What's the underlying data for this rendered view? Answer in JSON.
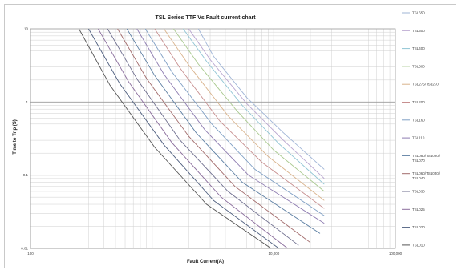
{
  "chart_data": {
    "type": "line",
    "title": "TSL  Series TTF  Vs Fault current chart",
    "xlabel": "Fault Current(A)",
    "ylabel": "Time to Trip (S)",
    "xscale": "log",
    "yscale": "log",
    "xlim": [
      100,
      100000
    ],
    "ylim": [
      0.01,
      10
    ],
    "x_ticks": [
      "100",
      "10,000",
      "100,000"
    ],
    "y_ticks": [
      "10",
      "1",
      "0.1",
      "0.01"
    ],
    "grid": true,
    "legend_position": "right",
    "series": [
      {
        "name": "TSL650",
        "color": "#9fb4d6",
        "x": [
          2400,
          3200,
          6000,
          12000,
          26000
        ],
        "y": [
          10,
          4.2,
          1.15,
          0.38,
          0.12
        ]
      },
      {
        "name": "TSL500",
        "color": "#b7a4cf",
        "x": [
          2000,
          3000,
          6000,
          12000,
          26000
        ],
        "y": [
          10,
          3.8,
          0.95,
          0.3,
          0.09
        ]
      },
      {
        "name": "TSL400",
        "color": "#8fc4d4",
        "x": [
          1800,
          2800,
          5500,
          11000,
          26000
        ],
        "y": [
          10,
          3.6,
          0.9,
          0.27,
          0.075
        ]
      },
      {
        "name": "TSL300",
        "color": "#a9c98f",
        "x": [
          1500,
          2400,
          5000,
          10000,
          26000
        ],
        "y": [
          10,
          3.3,
          0.75,
          0.22,
          0.06
        ]
      },
      {
        "name": "TSL275/TSL270",
        "color": "#d9b38c",
        "x": [
          1250,
          2000,
          4200,
          9000,
          26000
        ],
        "y": [
          10,
          3.2,
          0.65,
          0.18,
          0.045
        ]
      },
      {
        "name": "TSL200",
        "color": "#c78f8f",
        "x": [
          1050,
          1700,
          3600,
          8000,
          26000
        ],
        "y": [
          10,
          2.9,
          0.55,
          0.15,
          0.035
        ]
      },
      {
        "name": "TSL160",
        "color": "#7f9fc4",
        "x": [
          880,
          1450,
          3100,
          7000,
          26000
        ],
        "y": [
          10,
          2.6,
          0.5,
          0.12,
          0.028
        ]
      },
      {
        "name": "TSL110",
        "color": "#8d7bb0",
        "x": [
          750,
          1250,
          2700,
          6200,
          26000
        ],
        "y": [
          10,
          2.4,
          0.42,
          0.1,
          0.022
        ]
      },
      {
        "name": "TSL080/TSL090/TSL070",
        "color": "#5d7fa3",
        "x": [
          620,
          1050,
          2300,
          5500,
          24000
        ],
        "y": [
          10,
          2.3,
          0.38,
          0.08,
          0.016
        ]
      },
      {
        "name": "TSL060/TSL050/TSL040",
        "color": "#a26b6b",
        "x": [
          520,
          900,
          2000,
          4800,
          20000
        ],
        "y": [
          10,
          2.1,
          0.34,
          0.07,
          0.012
        ]
      },
      {
        "name": "TSL030",
        "color": "#6e6e8e",
        "x": [
          430,
          760,
          1700,
          4200,
          16000
        ],
        "y": [
          10,
          2.0,
          0.3,
          0.06,
          0.011
        ]
      },
      {
        "name": "TSL025",
        "color": "#8a6d9c",
        "x": [
          360,
          640,
          1450,
          3700,
          13000
        ],
        "y": [
          10,
          1.9,
          0.28,
          0.05,
          0.01
        ]
      },
      {
        "name": "TSL020",
        "color": "#4f5f7f",
        "x": [
          300,
          540,
          1250,
          3200,
          11000
        ],
        "y": [
          10,
          1.8,
          0.26,
          0.045,
          0.01
        ]
      },
      {
        "name": "TSL010",
        "color": "#555555",
        "x": [
          250,
          450,
          1050,
          2800,
          9500
        ],
        "y": [
          10,
          1.7,
          0.24,
          0.04,
          0.01
        ]
      }
    ],
    "legend": [
      "TSL650",
      "TSL500",
      "TSL400",
      "TSL300",
      "TSL275/TSL270",
      "TSL200",
      "TSL160",
      "TSL110",
      "TSL080/TSL090/TSL070",
      "TSL060/TSL050/TSL040",
      "TSL030",
      "TSL025",
      "TSL020",
      "TSL010"
    ]
  }
}
